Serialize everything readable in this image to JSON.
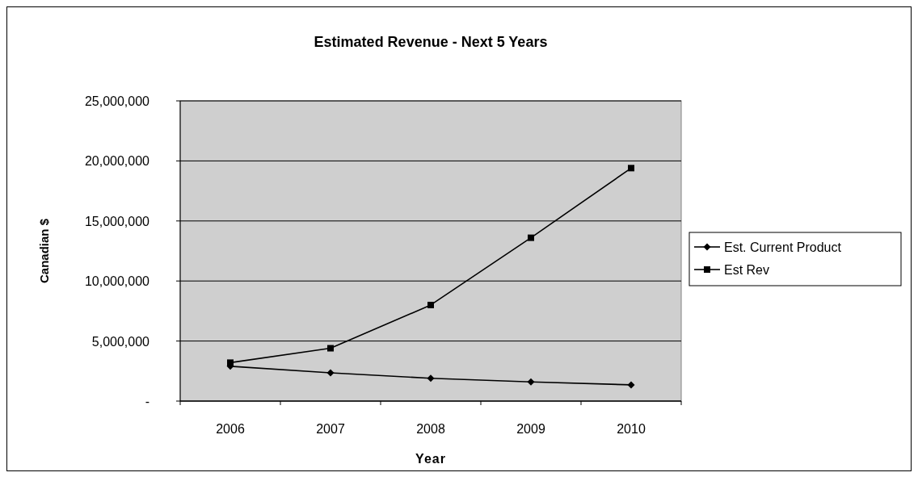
{
  "chart_data": {
    "type": "line",
    "title": "Estimated Revenue - Next 5 Years",
    "xlabel": "Year",
    "ylabel": "Canadian $",
    "categories": [
      "2006",
      "2007",
      "2008",
      "2009",
      "2010"
    ],
    "series": [
      {
        "name": "Est. Current Product",
        "color": "#000000",
        "marker": "diamond",
        "values": [
          2900000,
          2350000,
          1900000,
          1600000,
          1350000
        ]
      },
      {
        "name": "Est Rev",
        "color": "#000000",
        "marker": "square",
        "values": [
          3200000,
          4400000,
          8000000,
          13600000,
          19400000
        ]
      }
    ],
    "ylim": [
      0,
      25000000
    ],
    "yticks": [
      {
        "value": 0,
        "label": "-"
      },
      {
        "value": 5000000,
        "label": "5,000,000"
      },
      {
        "value": 10000000,
        "label": "10,000,000"
      },
      {
        "value": 15000000,
        "label": "15,000,000"
      },
      {
        "value": 20000000,
        "label": "20,000,000"
      },
      {
        "value": 25000000,
        "label": "25,000,000"
      }
    ],
    "grid": "y",
    "legend": "right",
    "line_style": "solid"
  }
}
